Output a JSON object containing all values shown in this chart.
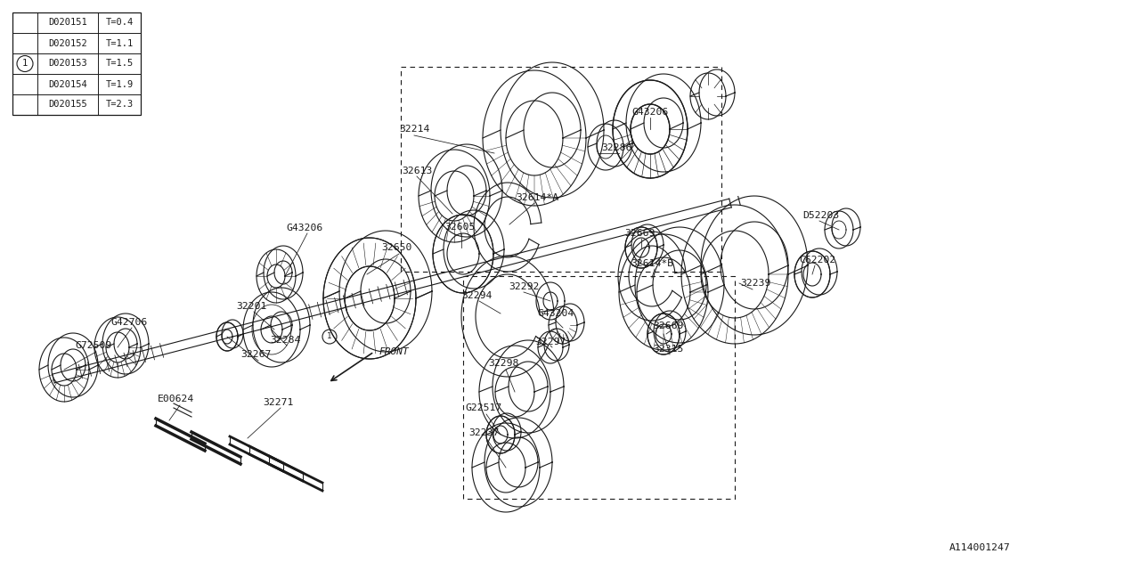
{
  "bg_color": "#ffffff",
  "line_color": "#1a1a1a",
  "lw": 0.8,
  "table": {
    "col1": [
      "D020151",
      "D020152",
      "D020153",
      "D020154",
      "D020155"
    ],
    "col2": [
      "T=0.4",
      "T=1.1",
      "T=1.5",
      "T=1.9",
      "T=2.3"
    ]
  },
  "ref_code": "A114001247",
  "front_label": "FRONT"
}
